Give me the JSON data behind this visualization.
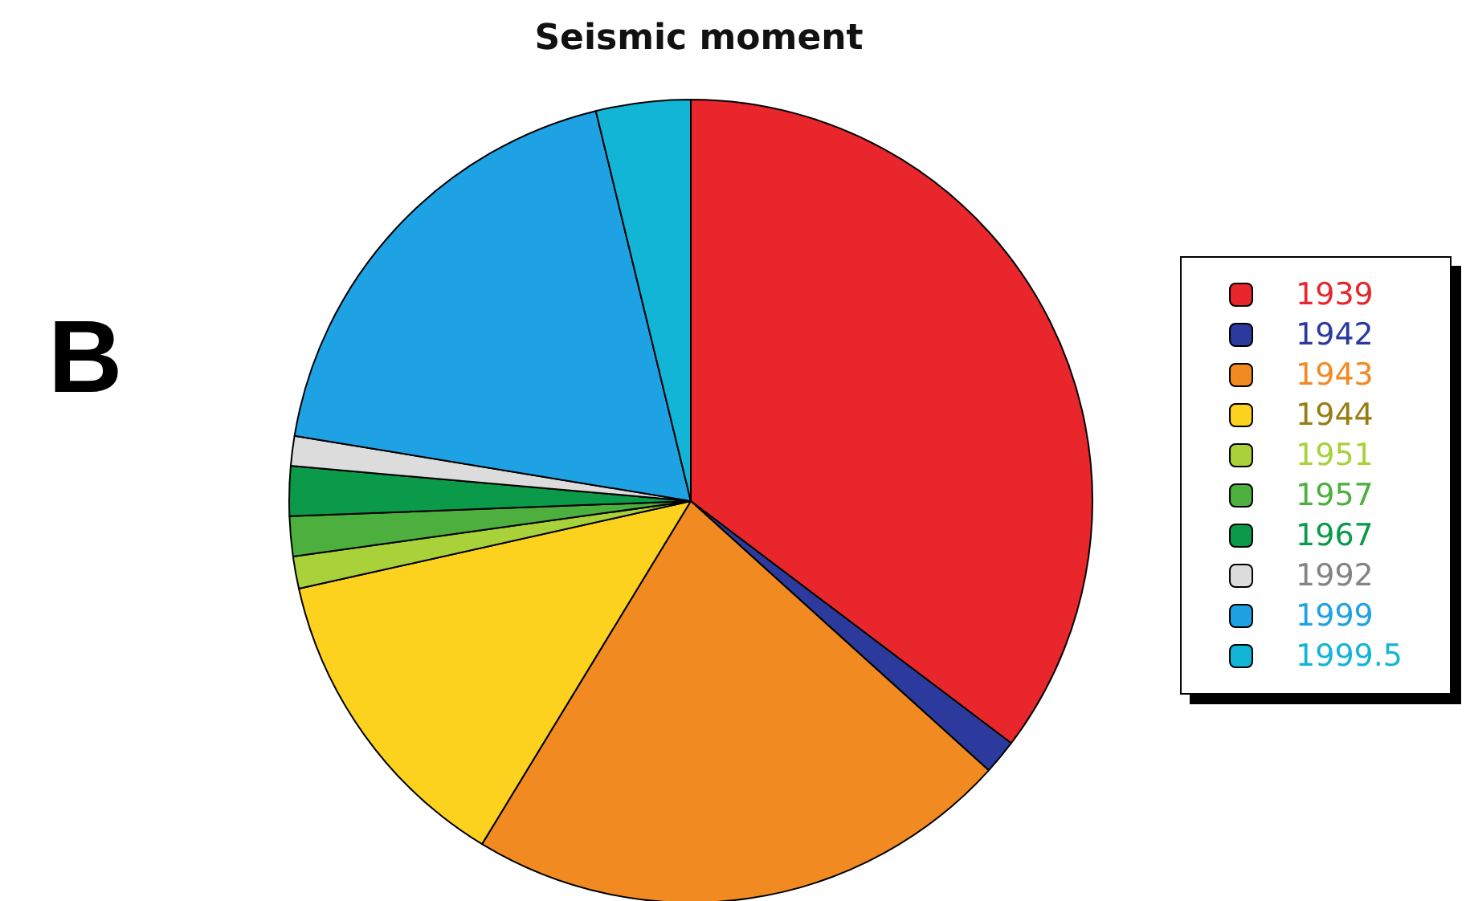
{
  "chart_data": {
    "type": "pie",
    "title": "Seismic moment",
    "annotations": [
      "B"
    ],
    "categories": [
      "1939",
      "1942",
      "1943",
      "1944",
      "1951",
      "1957",
      "1967",
      "1992",
      "1999",
      "1999.5"
    ],
    "values": [
      35.3,
      1.4,
      22,
      12.8,
      1.3,
      1.6,
      2,
      1.2,
      18.6,
      3.8
    ],
    "colors": [
      "#e8262c",
      "#2b3a9c",
      "#f28a22",
      "#fcd21e",
      "#a8d13a",
      "#4caf3e",
      "#0b9a4a",
      "#dcdcdc",
      "#1ea2e4",
      "#12b5d6"
    ],
    "legend": "right"
  }
}
